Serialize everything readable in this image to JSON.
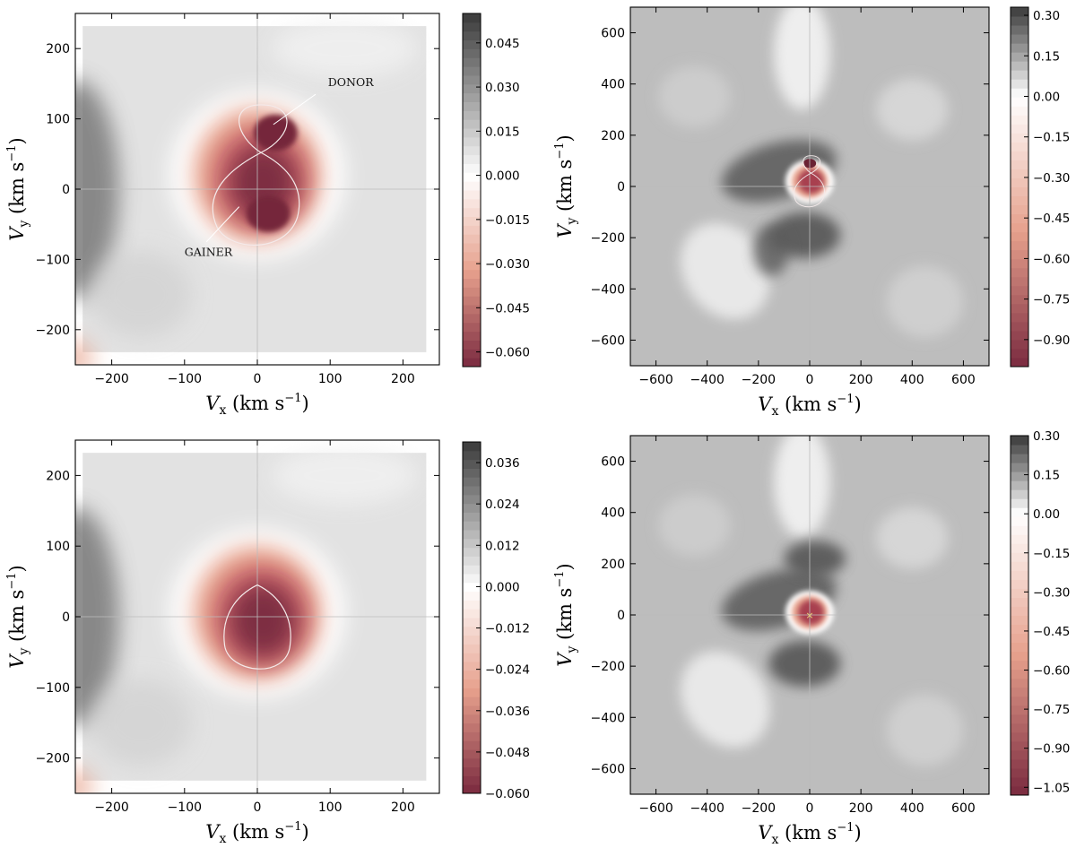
{
  "chart_data": [
    {
      "type": "heatmap",
      "panel": "top-left",
      "xlabel": "V_x (km s^-1)",
      "ylabel": "V_y (km s^-1)",
      "xlim": [
        -250,
        250
      ],
      "ylim": [
        -250,
        250
      ],
      "xticks": [
        "−200",
        "−100",
        "0",
        "100",
        "200"
      ],
      "yticks": [
        "−200",
        "−100",
        "0",
        "100",
        "200"
      ],
      "colorbar": {
        "range": [
          -0.065,
          0.055
        ],
        "ticks": [
          "−0.060",
          "−0.045",
          "−0.030",
          "−0.015",
          "0.000",
          "0.015",
          "0.030",
          "0.045"
        ],
        "colors": {
          "negative": "#7a2a3f",
          "zero": "#ffffff",
          "positive": "#3a3a3a"
        }
      },
      "overlay": "roche-lobe-figure-eight",
      "annotations": [
        "DONOR",
        "GAINER"
      ]
    },
    {
      "type": "heatmap",
      "panel": "top-right",
      "xlabel": "V_x (km s^-1)",
      "ylabel": "V_y (km s^-1)",
      "xlim": [
        -700,
        700
      ],
      "ylim": [
        -700,
        700
      ],
      "xticks": [
        "−600",
        "−400",
        "−200",
        "0",
        "200",
        "400",
        "600"
      ],
      "yticks": [
        "−600",
        "−400",
        "−200",
        "0",
        "200",
        "400",
        "600"
      ],
      "colorbar": {
        "range": [
          -1.0,
          0.33
        ],
        "ticks": [
          "−0.90",
          "−0.75",
          "−0.60",
          "−0.45",
          "−0.30",
          "−0.15",
          "0.00",
          "0.15",
          "0.30"
        ]
      },
      "overlay": "roche-lobe-figure-eight"
    },
    {
      "type": "heatmap",
      "panel": "bottom-left",
      "xlabel": "V_x (km s^-1)",
      "ylabel": "V_y (km s^-1)",
      "xlim": [
        -250,
        250
      ],
      "ylim": [
        -250,
        250
      ],
      "xticks": [
        "−200",
        "−100",
        "0",
        "100",
        "200"
      ],
      "yticks": [
        "−200",
        "−100",
        "0",
        "100",
        "200"
      ],
      "colorbar": {
        "range": [
          -0.06,
          0.042
        ],
        "ticks": [
          "−0.060",
          "−0.048",
          "−0.036",
          "−0.024",
          "−0.012",
          "0.000",
          "0.012",
          "0.024",
          "0.036"
        ]
      },
      "overlay": "roche-lobe-teardrop"
    },
    {
      "type": "heatmap",
      "panel": "bottom-right",
      "xlabel": "V_x (km s^-1)",
      "ylabel": "V_y (km s^-1)",
      "xlim": [
        -700,
        700
      ],
      "ylim": [
        -700,
        700
      ],
      "xticks": [
        "−600",
        "−400",
        "−200",
        "0",
        "200",
        "400",
        "600"
      ],
      "yticks": [
        "−600",
        "−400",
        "−200",
        "0",
        "200",
        "400",
        "600"
      ],
      "colorbar": {
        "range": [
          -1.08,
          0.3
        ],
        "ticks": [
          "−1.05",
          "−0.90",
          "−0.75",
          "−0.60",
          "−0.45",
          "−0.30",
          "−0.15",
          "0.00",
          "0.15",
          "0.30"
        ]
      },
      "overlay": "center-marker"
    }
  ]
}
